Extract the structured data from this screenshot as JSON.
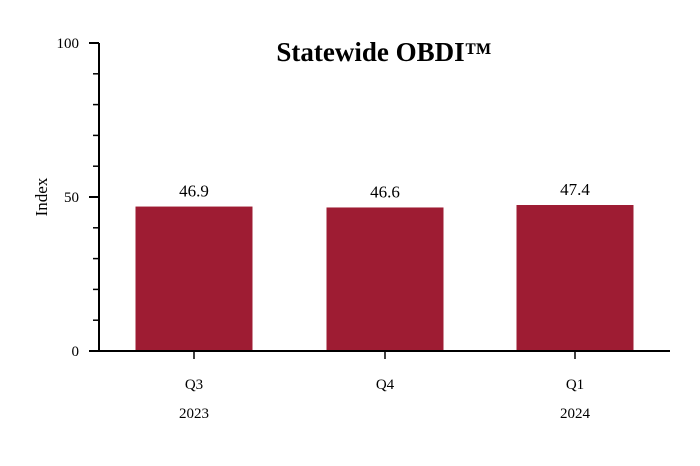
{
  "chart_data": {
    "type": "bar",
    "title": "Statewide OBDI™",
    "ylabel": "Index",
    "xlabel": "",
    "ylim": [
      0,
      100
    ],
    "yticks": [
      "0",
      "50",
      "100"
    ],
    "categories": [
      "Q3",
      "Q4",
      "Q1"
    ],
    "year_labels": [
      "2023",
      "",
      "2024"
    ],
    "values": [
      46.9,
      46.6,
      47.4
    ],
    "value_labels": [
      "46.9",
      "46.6",
      "47.4"
    ],
    "bar_color": "#9e1c33",
    "grid": false
  }
}
